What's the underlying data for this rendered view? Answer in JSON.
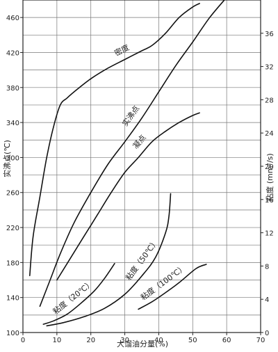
{
  "chart_data": {
    "type": "line",
    "x_axis": {
      "label": "大馏油分量(%)",
      "range": [
        0,
        70
      ],
      "ticks": [
        0,
        10,
        20,
        30,
        40,
        50,
        60,
        70
      ]
    },
    "y_axis_left": {
      "label": "实沸点(℃)",
      "range": [
        100,
        480
      ],
      "ticks": [
        100,
        140,
        180,
        220,
        260,
        300,
        340,
        380,
        420,
        460
      ],
      "minor_ticks": [
        120,
        160,
        200,
        240,
        280,
        320,
        360,
        400,
        440
      ]
    },
    "y_axis_right": {
      "label": "粘度 (mm²/s)",
      "range": [
        0,
        40
      ],
      "ticks": [
        0,
        4,
        8,
        12,
        16,
        20,
        24,
        28,
        32,
        36
      ]
    },
    "grid": true,
    "series": [
      {
        "name": "密度",
        "axis": "left",
        "points": [
          [
            2,
            165
          ],
          [
            3,
            210
          ],
          [
            5,
            255
          ],
          [
            7,
            300
          ],
          [
            9,
            335
          ],
          [
            11,
            360
          ],
          [
            13,
            368
          ],
          [
            16,
            378
          ],
          [
            20,
            390
          ],
          [
            25,
            402
          ],
          [
            30,
            412
          ],
          [
            35,
            422
          ],
          [
            38,
            428
          ],
          [
            42,
            442
          ],
          [
            46,
            460
          ],
          [
            50,
            472
          ],
          [
            52,
            476
          ]
        ]
      },
      {
        "name": "实沸点",
        "axis": "left",
        "points": [
          [
            5,
            130
          ],
          [
            8,
            160
          ],
          [
            11,
            190
          ],
          [
            15,
            225
          ],
          [
            20,
            260
          ],
          [
            25,
            292
          ],
          [
            30,
            318
          ],
          [
            35,
            345
          ],
          [
            40,
            375
          ],
          [
            45,
            405
          ],
          [
            50,
            432
          ],
          [
            55,
            460
          ],
          [
            60,
            483
          ]
        ]
      },
      {
        "name": "凝点",
        "axis": "left",
        "points": [
          [
            10,
            160
          ],
          [
            14,
            185
          ],
          [
            18,
            210
          ],
          [
            22,
            235
          ],
          [
            26,
            260
          ],
          [
            30,
            283
          ],
          [
            34,
            300
          ],
          [
            38,
            318
          ],
          [
            42,
            330
          ],
          [
            46,
            340
          ],
          [
            50,
            348
          ],
          [
            52,
            351
          ]
        ]
      },
      {
        "name": "粘度（20℃）",
        "axis": "right",
        "points": [
          [
            6,
            1.0
          ],
          [
            9,
            1.4
          ],
          [
            13,
            2.2
          ],
          [
            17,
            3.5
          ],
          [
            21,
            5.0
          ],
          [
            24,
            6.5
          ],
          [
            27,
            8.3
          ]
        ]
      },
      {
        "name": "粘度（50℃）",
        "axis": "right",
        "points": [
          [
            7,
            0.8
          ],
          [
            12,
            1.2
          ],
          [
            18,
            1.9
          ],
          [
            24,
            2.9
          ],
          [
            30,
            4.6
          ],
          [
            35,
            6.8
          ],
          [
            39,
            9.0
          ],
          [
            42,
            12.0
          ],
          [
            43,
            14.0
          ],
          [
            43.5,
            16.7
          ]
        ]
      },
      {
        "name": "粘度（100℃）",
        "axis": "right",
        "points": [
          [
            34,
            2.8
          ],
          [
            38,
            3.7
          ],
          [
            42,
            4.8
          ],
          [
            46,
            6.0
          ],
          [
            51,
            7.7
          ],
          [
            54,
            8.2
          ]
        ]
      }
    ]
  }
}
